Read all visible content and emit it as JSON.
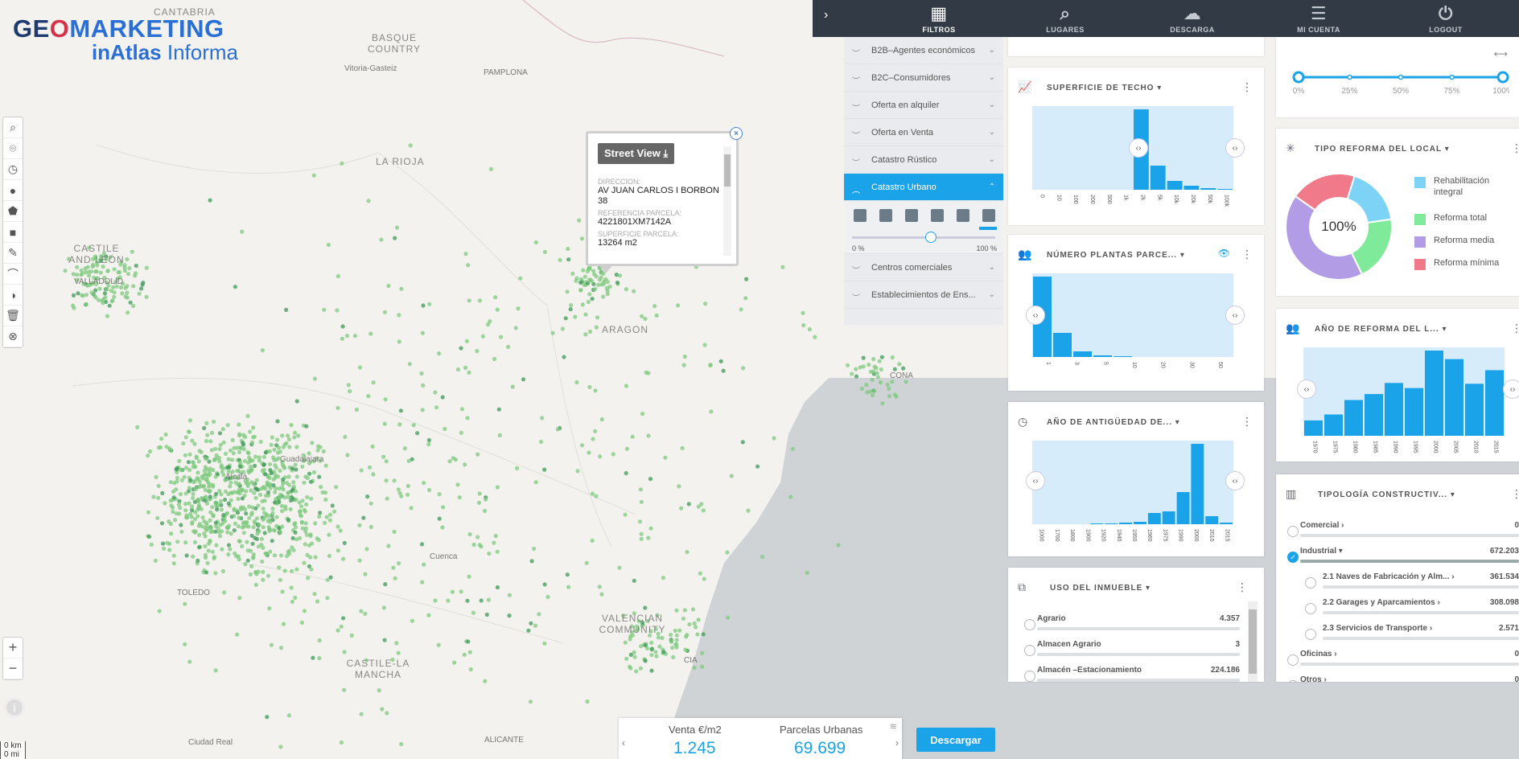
{
  "logo": {
    "line1_a": "GE",
    "line1_b": "O",
    "line1_c": "MARKETING",
    "line2_a": "inAtlas",
    "line2_b": " Informa"
  },
  "map": {
    "regions": [
      "CANTABRIA",
      "BASQUE COUNTRY",
      "LA RIOJA",
      "CASTILE AND LEÓN",
      "ARAGON",
      "VALENCIAN COMMUNITY",
      "CASTILE-LA MANCHA"
    ],
    "cities": [
      "Vitoria-Gasteiz",
      "PAMPLONA",
      "VALLADOLID",
      "TOLEDO",
      "Cuenca",
      "Ciudad Real",
      "ALICANTE",
      "CIA",
      "CONA",
      "Alcalá",
      "Guadalajara"
    ],
    "scale_km": "0 km",
    "scale_mi": "0 mi",
    "point_color": "#7fc97f"
  },
  "left_tools": [
    "search-icon",
    "location-icon",
    "clock-icon",
    "circle-icon",
    "polygon-icon",
    "square-icon",
    "edit-icon",
    "route-icon",
    "contrast-icon",
    "trash-icon",
    "cancel-icon"
  ],
  "zoom": {
    "in": "+",
    "out": "−"
  },
  "popup": {
    "street_view": "Street View ⤓",
    "close": "×",
    "fields": [
      {
        "k": "DIRECCION:",
        "v": "AV JUAN CARLOS I BORBON 38"
      },
      {
        "k": "REFERENCIA PARCELA:",
        "v": "4221801XM7142A"
      },
      {
        "k": "SUPERFICIE PARCELA:",
        "v": "13264 m2"
      }
    ]
  },
  "topnav": {
    "items": [
      {
        "label": "FILTROS",
        "icon": "▦"
      },
      {
        "label": "LUGARES",
        "icon": "⌕"
      },
      {
        "label": "DESCARGA",
        "icon": "☁"
      },
      {
        "label": "MI CUENTA",
        "icon": "☰"
      },
      {
        "label": "LOGOUT",
        "icon": "⏻"
      }
    ]
  },
  "filters": {
    "items": [
      "B2B–Agentes económicos",
      "B2C–Consumidores",
      "Oferta en alquiler",
      "Oferta en Venta",
      "Catastro Rústico",
      "Catastro Urbano",
      "Centros comerciales",
      "Establecimientos de Ens..."
    ],
    "slider_min": "0 %",
    "slider_max": "100 %",
    "slider_value": 0.55
  },
  "widgets": {
    "superficie": {
      "title": "SUPERFICIE DE TECHO ▾",
      "ticks": [
        "0",
        "10",
        "100",
        "200",
        "500",
        "1k",
        "2k",
        "5k",
        "10k",
        "20k",
        "50k",
        "100k"
      ],
      "values": [
        0,
        0,
        0,
        0,
        0,
        0,
        100,
        30,
        11,
        5,
        2,
        1
      ]
    },
    "plantas": {
      "title": "NÚMERO PLANTAS PARCE... ▾",
      "ticks": [
        "1",
        "3",
        "5",
        "10",
        "20",
        "30",
        "50"
      ],
      "values": [
        100,
        30,
        7,
        2,
        1,
        0,
        0,
        0,
        0,
        0
      ]
    },
    "antiguedad": {
      "title": "AÑO DE ANTIGÜEDAD DE... ▾",
      "ticks": [
        "1000",
        "1700",
        "1800",
        "1900",
        "1920",
        "1940",
        "1950",
        "1960",
        "1975",
        "1990",
        "2000",
        "2010",
        "2015"
      ],
      "values": [
        0,
        0,
        0,
        0,
        1,
        1,
        2,
        3,
        14,
        16,
        40,
        100,
        10,
        2
      ]
    },
    "uso": {
      "title": "USO DEL INMUEBLE ▾",
      "rows": [
        {
          "name": "Agrario",
          "value": "4.357"
        },
        {
          "name": "Almacen Agrario",
          "value": "3"
        },
        {
          "name": "Almacén –Estacionamiento",
          "value": "224.186"
        }
      ]
    },
    "progress": {
      "ticks": [
        "0%",
        "25%",
        "50%",
        "75%",
        "100%"
      ],
      "expand": "⟷"
    },
    "reforma": {
      "title": "TIPO REFORMA DEL LOCAL ▾",
      "center": "100%",
      "slices": [
        {
          "name": "Rehabilitación integral",
          "value": 18,
          "color": "#7dd3f5"
        },
        {
          "name": "Reforma total",
          "value": 20,
          "color": "#7eea9a"
        },
        {
          "name": "Reforma media",
          "value": 42,
          "color": "#b29ce6"
        },
        {
          "name": "Reforma mínima",
          "value": 20,
          "color": "#f07a8a"
        }
      ]
    },
    "anyo_reforma": {
      "title": "AÑO DE REFORMA DEL L... ▾",
      "ticks": [
        "1970",
        "1975",
        "1980",
        "1985",
        "1990",
        "1995",
        "2000",
        "2005",
        "2010",
        "2015"
      ],
      "values": [
        18,
        25,
        42,
        49,
        62,
        56,
        100,
        90,
        61,
        77
      ]
    },
    "tipologia": {
      "title": "TIPOLOGÍA CONSTRUCTIV... ▾",
      "rows": [
        {
          "name": "Comercial ›",
          "value": "0",
          "fill": 0.0,
          "checked": false,
          "indent": false
        },
        {
          "name": "Industrial ▾",
          "value": "672.203",
          "fill": 1.0,
          "checked": true,
          "indent": false
        },
        {
          "name": "2.1  Naves de Fabricación y Alm... ›",
          "value": "361.534",
          "fill": 0.0,
          "checked": false,
          "indent": true
        },
        {
          "name": "2.2  Garages y Aparcamientos ›",
          "value": "308.098",
          "fill": 0.0,
          "checked": false,
          "indent": true
        },
        {
          "name": "2.3  Servicios de Transporte ›",
          "value": "2.571",
          "fill": 0.0,
          "checked": false,
          "indent": true
        },
        {
          "name": "Oficinas ›",
          "value": "0",
          "fill": 0.0,
          "checked": false,
          "indent": false
        },
        {
          "name": "Otros ›",
          "value": "0",
          "fill": 0.0,
          "checked": false,
          "indent": false
        }
      ]
    }
  },
  "summary": {
    "label1": "Venta  €/m2",
    "value1": "1.245",
    "label2": "Parcelas Urbanas",
    "value2": "69.699",
    "download": "Descargar"
  }
}
